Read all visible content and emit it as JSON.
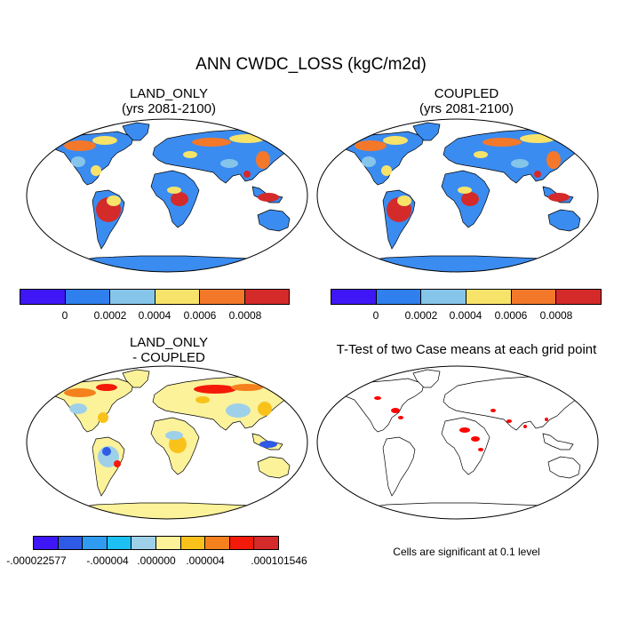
{
  "title": "ANN CWDC_LOSS (kgC/m2d)",
  "panels": [
    {
      "line1": "LAND_ONLY",
      "line2": "(yrs 2081-2100)"
    },
    {
      "line1": "COUPLED",
      "line2": "(yrs 2081-2100)"
    },
    {
      "line1": "LAND_ONLY",
      "line2": "- COUPLED"
    },
    {
      "line1": "T-Test of two Case means at each grid point",
      "line2": ""
    }
  ],
  "colorbar_top": {
    "colors": [
      "#3f16f5",
      "#2f80ee",
      "#86c5ea",
      "#f8e36a",
      "#f4782a",
      "#d42a2a"
    ],
    "labels": [
      "0",
      "0.0002",
      "0.0004",
      "0.0006",
      "0.0008"
    ]
  },
  "colorbar_diff": {
    "colors": [
      "#3f16f5",
      "#2f5ae6",
      "#2f9cf2",
      "#1cc0f2",
      "#9fd0ea",
      "#fbf29a",
      "#f9c21a",
      "#f4811e",
      "#f31a0a",
      "#d42a2a"
    ],
    "labels": [
      "-.000022577",
      "-.000004",
      ".000000",
      ".000004",
      ".000101546"
    ]
  },
  "significance_note": "Cells are significant at 0.1 level",
  "colors": {
    "ocean": "#ffffff",
    "land_base": "#3b8cf0",
    "land_base_diff": "#fbf29a",
    "significant": "#ff0000"
  }
}
